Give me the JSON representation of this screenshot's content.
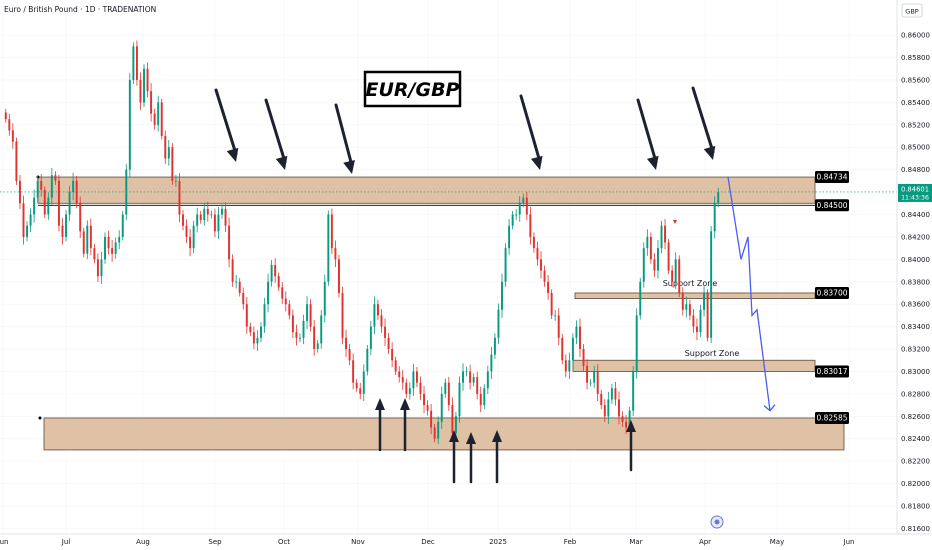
{
  "header": {
    "symbol_line": "Euro / British Pound · 1D · TRADENATION"
  },
  "currency": "GBP",
  "title_box": "EUR/GBP",
  "price_tag": {
    "price": "0.84601",
    "countdown": "11:43:36"
  },
  "zones": {
    "support_upper_label": "Support Zone",
    "support_lower_label": "Support Zone"
  },
  "level_labels": [
    "0.84734",
    "0.84500",
    "0.83700",
    "0.83017",
    "0.82585"
  ],
  "colors": {
    "bull": "#089981",
    "bear": "#e0332f",
    "zone_fill": "#d9b796",
    "arrow": "#1e2230",
    "projection": "#4b5ef0",
    "label_bg": "#000000"
  },
  "chart_data": {
    "type": "candlestick",
    "title": "EUR/GBP",
    "y_axis": {
      "ticks": [
        "0.86000",
        "0.85800",
        "0.85600",
        "0.85400",
        "0.85200",
        "0.85000",
        "0.84800",
        "0.84600",
        "0.84400",
        "0.84200",
        "0.84000",
        "0.83800",
        "0.83600",
        "0.83400",
        "0.83200",
        "0.83000",
        "0.82800",
        "0.82600",
        "0.82400",
        "0.82200",
        "0.82000",
        "0.81800",
        "0.81600"
      ],
      "range": [
        0.8155,
        0.863
      ],
      "side": "right"
    },
    "x_axis": {
      "ticks": [
        "Jun",
        "Jul",
        "Aug",
        "Sep",
        "Oct",
        "Nov",
        "Dec",
        "2025",
        "Feb",
        "Mar",
        "Apr",
        "May",
        "Jun"
      ]
    },
    "resistance_zone": [
      0.845,
      0.84734
    ],
    "support_zones": [
      [
        0.8365,
        0.837
      ],
      [
        0.83,
        0.831
      ],
      [
        0.823,
        0.82585
      ]
    ],
    "levels": [
      0.84734,
      0.845,
      0.837,
      0.83017,
      0.82585
    ],
    "last_price": 0.84601,
    "closes": [
      0.8525,
      0.8515,
      0.8505,
      0.847,
      0.845,
      0.842,
      0.843,
      0.844,
      0.8455,
      0.847,
      0.8462,
      0.844,
      0.8455,
      0.8475,
      0.847,
      0.843,
      0.842,
      0.844,
      0.846,
      0.847,
      0.845,
      0.8425,
      0.8405,
      0.843,
      0.841,
      0.84,
      0.8385,
      0.84,
      0.842,
      0.841,
      0.8405,
      0.8415,
      0.842,
      0.844,
      0.848,
      0.856,
      0.859,
      0.856,
      0.854,
      0.857,
      0.855,
      0.853,
      0.852,
      0.854,
      0.851,
      0.849,
      0.85,
      0.847,
      0.847,
      0.844,
      0.843,
      0.842,
      0.841,
      0.843,
      0.844,
      0.8435,
      0.8445,
      0.844,
      0.844,
      0.8425,
      0.844,
      0.8445,
      0.843,
      0.84,
      0.838,
      0.838,
      0.837,
      0.836,
      0.834,
      0.8335,
      0.8325,
      0.833,
      0.834,
      0.836,
      0.838,
      0.8395,
      0.8385,
      0.8375,
      0.8365,
      0.836,
      0.835,
      0.8335,
      0.833,
      0.833,
      0.8345,
      0.836,
      0.834,
      0.832,
      0.8325,
      0.835,
      0.838,
      0.844,
      0.841,
      0.84,
      0.837,
      0.833,
      0.832,
      0.831,
      0.829,
      0.8285,
      0.828,
      0.83,
      0.832,
      0.834,
      0.836,
      0.835,
      0.834,
      0.833,
      0.832,
      0.831,
      0.83,
      0.8295,
      0.829,
      0.828,
      0.8285,
      0.83,
      0.829,
      0.828,
      0.827,
      0.8265,
      0.825,
      0.824,
      0.8255,
      0.828,
      0.829,
      0.827,
      0.8245,
      0.826,
      0.829,
      0.83,
      0.83,
      0.829,
      0.8295,
      0.828,
      0.827,
      0.8285,
      0.83,
      0.8315,
      0.833,
      0.8355,
      0.838,
      0.841,
      0.843,
      0.844,
      0.844,
      0.845,
      0.8455,
      0.844,
      0.842,
      0.841,
      0.84,
      0.839,
      0.838,
      0.837,
      0.835,
      0.835,
      0.833,
      0.831,
      0.83,
      0.831,
      0.833,
      0.834,
      0.832,
      0.8305,
      0.829,
      0.829,
      0.83,
      0.828,
      0.827,
      0.826,
      0.8275,
      0.8285,
      0.8275,
      0.826,
      0.8255,
      0.825,
      0.8265,
      0.83,
      0.835,
      0.838,
      0.841,
      0.842,
      0.84,
      0.839,
      0.841,
      0.843,
      0.8415,
      0.839,
      0.838,
      0.84,
      0.837,
      0.8355,
      0.836,
      0.835,
      0.834,
      0.8335,
      0.8355,
      0.837,
      0.833,
      0.8425,
      0.845,
      0.846
    ],
    "projection": [
      0.84734,
      0.84,
      0.842,
      0.835,
      0.8355,
      0.8265
    ]
  }
}
